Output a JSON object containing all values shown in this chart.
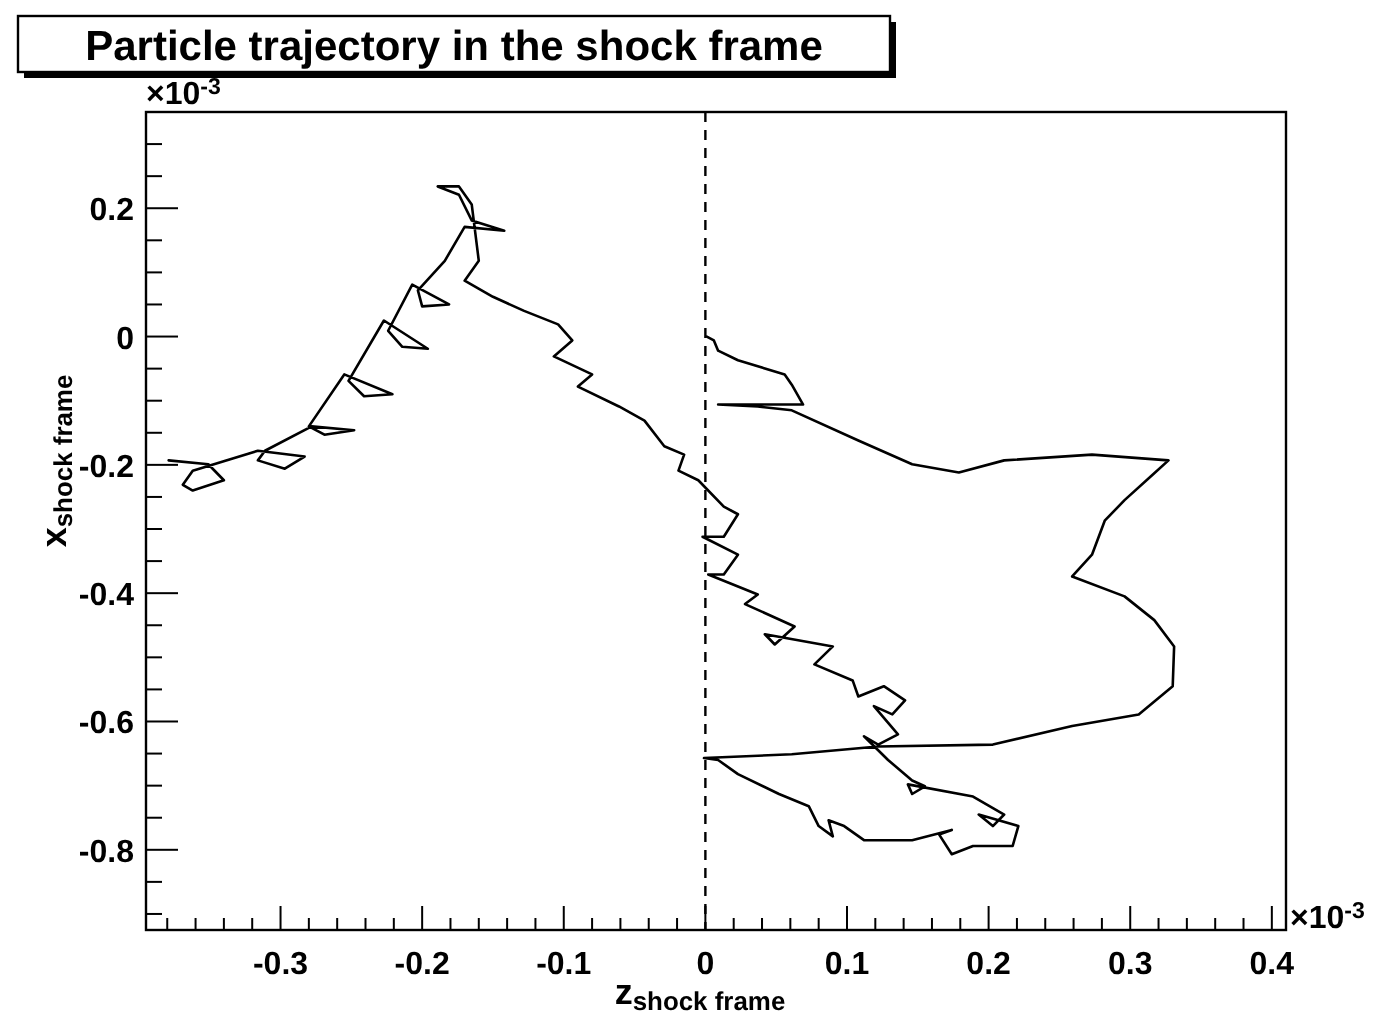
{
  "chart_data": {
    "type": "line",
    "title": "Particle trajectory in the shock frame",
    "xlabel": "z$_{shock frame}$",
    "ylabel": "x$_{shock frame}$",
    "annotations": [
      "×10$^{-3}$",
      "×10$^{-3}$"
    ],
    "xlim": [
      -0.395,
      0.41
    ],
    "ylim": [
      -0.925,
      0.35
    ],
    "xticks": [
      {
        "value": -0.38,
        "label": null
      },
      {
        "value": -0.36,
        "label": null
      },
      {
        "value": -0.34,
        "label": null
      },
      {
        "value": -0.32,
        "label": null
      },
      -0.3,
      {
        "value": -0.28,
        "label": null
      },
      {
        "value": -0.26,
        "label": null
      },
      {
        "value": -0.24,
        "label": null
      },
      {
        "value": -0.22,
        "label": null
      },
      -0.2,
      {
        "value": -0.18,
        "label": null
      },
      {
        "value": -0.16,
        "label": null
      },
      {
        "value": -0.14,
        "label": null
      },
      {
        "value": -0.12,
        "label": null
      },
      -0.1,
      {
        "value": -0.08,
        "label": null
      },
      {
        "value": -0.06,
        "label": null
      },
      {
        "value": -0.04,
        "label": null
      },
      {
        "value": -0.02,
        "label": null
      },
      0,
      {
        "value": 0.02,
        "label": null
      },
      {
        "value": 0.04,
        "label": null
      },
      {
        "value": 0.06,
        "label": null
      },
      {
        "value": 0.08,
        "label": null
      },
      0.1,
      {
        "value": 0.12,
        "label": null
      },
      {
        "value": 0.14,
        "label": null
      },
      {
        "value": 0.16,
        "label": null
      },
      {
        "value": 0.18,
        "label": null
      },
      0.2,
      {
        "value": 0.22,
        "label": null
      },
      {
        "value": 0.24,
        "label": null
      },
      {
        "value": 0.26,
        "label": null
      },
      {
        "value": 0.28,
        "label": null
      },
      0.3,
      {
        "value": 0.32,
        "label": null
      },
      {
        "value": 0.34,
        "label": null
      },
      {
        "value": 0.36,
        "label": null
      },
      {
        "value": 0.38,
        "label": null
      },
      0.4
    ],
    "yticks": [
      {
        "value": -0.9,
        "label": null
      },
      {
        "value": -0.85,
        "label": null
      },
      -0.8,
      {
        "value": -0.75,
        "label": null
      },
      {
        "value": -0.7,
        "label": null
      },
      {
        "value": -0.65,
        "label": null
      },
      -0.6,
      {
        "value": -0.55,
        "label": null
      },
      {
        "value": -0.5,
        "label": null
      },
      {
        "value": -0.45,
        "label": null
      },
      -0.4,
      {
        "value": -0.35,
        "label": null
      },
      {
        "value": -0.3,
        "label": null
      },
      {
        "value": -0.25,
        "label": null
      },
      -0.2,
      {
        "value": -0.15,
        "label": null
      },
      {
        "value": -0.1,
        "label": null
      },
      {
        "value": -0.05,
        "label": null
      },
      0,
      {
        "value": 0.05,
        "label": null
      },
      {
        "value": 0.1,
        "label": null
      },
      {
        "value": 0.15,
        "label": null
      },
      0.2,
      {
        "value": 0.25,
        "label": null
      },
      {
        "value": 0.3,
        "label": null
      }
    ],
    "grid": false,
    "line_style": "solid",
    "color": "#000000",
    "ref_lines": [
      {
        "axis": "x",
        "value": 0,
        "line_style": "dashed",
        "color": "#000000"
      }
    ],
    "x": [
      -0.379,
      -0.351,
      -0.34,
      -0.362,
      -0.369,
      -0.362,
      -0.316,
      -0.283,
      -0.297,
      -0.316,
      -0.311,
      -0.278,
      -0.248,
      -0.269,
      -0.28,
      -0.255,
      -0.221,
      -0.241,
      -0.252,
      -0.227,
      -0.196,
      -0.214,
      -0.224,
      -0.207,
      -0.181,
      -0.2,
      -0.203,
      -0.184,
      -0.17,
      -0.142,
      -0.165,
      -0.174,
      -0.189,
      -0.174,
      -0.165,
      -0.16,
      -0.17,
      -0.15,
      -0.128,
      -0.104,
      -0.094,
      -0.107,
      -0.08,
      -0.09,
      -0.061,
      -0.043,
      -0.029,
      -0.015,
      -0.019,
      -0.005,
      0.013,
      0.023,
      0.013,
      -0.002,
      0.023,
      0.013,
      0.002,
      0.037,
      0.028,
      0.063,
      0.049,
      0.042,
      0.09,
      0.077,
      0.104,
      0.108,
      0.126,
      0.141,
      0.132,
      0.119,
      0.136,
      0.122,
      0.112,
      0.129,
      0.146,
      0.155,
      0.146,
      0.143,
      0.189,
      0.211,
      0.203,
      0.193,
      0.221,
      0.217,
      0.189,
      0.174,
      0.165,
      0.174,
      0.146,
      0.112,
      0.098,
      0.087,
      0.09,
      0.08,
      0.073,
      0.052,
      0.023,
      0.009,
      -0.001,
      0.061,
      0.122,
      0.203,
      0.259,
      0.306,
      0.33,
      0.331,
      0.317,
      0.296,
      0.259,
      0.273,
      0.282,
      0.296,
      0.316,
      0.327,
      0.273,
      0.211,
      0.179,
      0.146,
      0.108,
      0.061,
      0.037,
      0.009,
      0.069,
      0.061,
      0.056,
      0.023,
      0.009,
      0.006,
      0.001
    ],
    "values": [
      -0.193,
      -0.199,
      -0.224,
      -0.24,
      -0.231,
      -0.209,
      -0.178,
      -0.187,
      -0.206,
      -0.193,
      -0.178,
      -0.14,
      -0.146,
      -0.153,
      -0.14,
      -0.059,
      -0.09,
      -0.093,
      -0.069,
      0.025,
      -0.019,
      -0.016,
      0.009,
      0.081,
      0.05,
      0.047,
      0.072,
      0.118,
      0.171,
      0.165,
      0.181,
      0.221,
      0.234,
      0.234,
      0.206,
      0.118,
      0.087,
      0.062,
      0.04,
      0.019,
      -0.006,
      -0.031,
      -0.059,
      -0.078,
      -0.109,
      -0.131,
      -0.171,
      -0.184,
      -0.209,
      -0.224,
      -0.265,
      -0.277,
      -0.312,
      -0.312,
      -0.34,
      -0.371,
      -0.371,
      -0.402,
      -0.417,
      -0.452,
      -0.48,
      -0.464,
      -0.483,
      -0.511,
      -0.536,
      -0.561,
      -0.545,
      -0.567,
      -0.589,
      -0.576,
      -0.62,
      -0.636,
      -0.623,
      -0.66,
      -0.692,
      -0.701,
      -0.713,
      -0.698,
      -0.717,
      -0.745,
      -0.763,
      -0.745,
      -0.763,
      -0.794,
      -0.794,
      -0.807,
      -0.776,
      -0.769,
      -0.785,
      -0.785,
      -0.763,
      -0.754,
      -0.779,
      -0.763,
      -0.732,
      -0.713,
      -0.682,
      -0.66,
      -0.657,
      -0.651,
      -0.639,
      -0.636,
      -0.607,
      -0.589,
      -0.545,
      -0.483,
      -0.442,
      -0.405,
      -0.374,
      -0.34,
      -0.287,
      -0.255,
      -0.215,
      -0.193,
      -0.184,
      -0.193,
      -0.212,
      -0.199,
      -0.162,
      -0.115,
      -0.109,
      -0.106,
      -0.106,
      -0.075,
      -0.059,
      -0.037,
      -0.022,
      -0.006,
      0
    ]
  }
}
